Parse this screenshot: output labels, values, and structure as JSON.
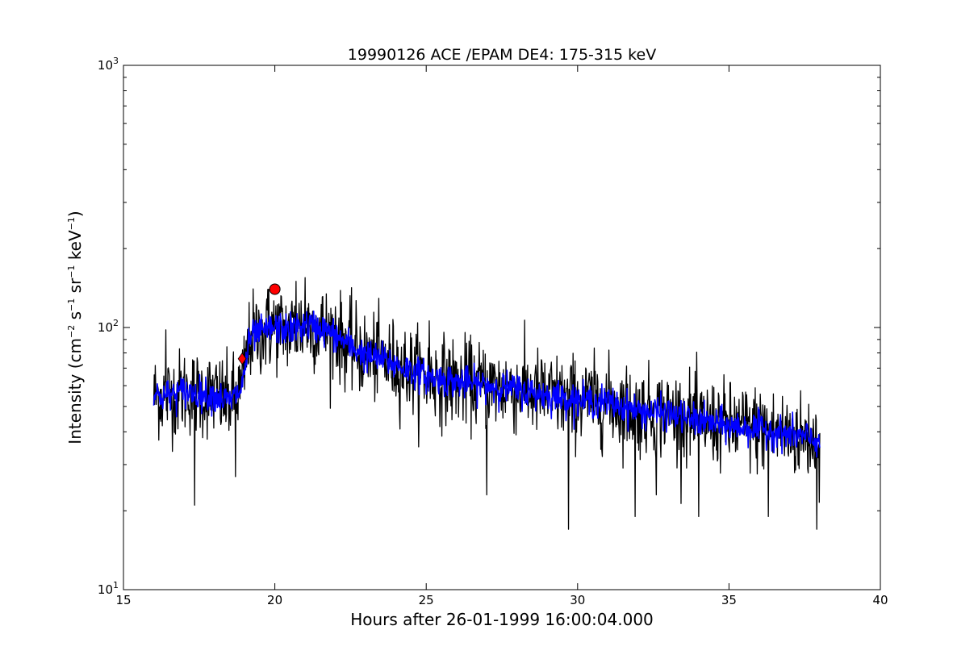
{
  "chart_data": {
    "type": "line",
    "title": "19990126 ACE /EPAM DE4: 175-315 keV",
    "xlabel": "Hours after 26-01-1999 16:00:04.000",
    "ylabel": "Intensity (cm^-2 s^-1 sr^-1 keV^-1)",
    "xlim": [
      15,
      40
    ],
    "ylim": [
      10,
      1000
    ],
    "yscale": "log",
    "grid": false,
    "x_ticks": [
      "15",
      "20",
      "25",
      "30",
      "35",
      "40"
    ],
    "y_ticks": [
      {
        "base": "10",
        "exp": "1",
        "value": 10
      },
      {
        "base": "10",
        "exp": "2",
        "value": 100
      },
      {
        "base": "10",
        "exp": "3",
        "value": 1000
      }
    ],
    "series": [
      {
        "color": "#000000",
        "style": "raw",
        "x": [
          16.0,
          16.5,
          17.0,
          17.5,
          18.0,
          18.5,
          18.9,
          19.2,
          19.5,
          20.0,
          20.5,
          21.0,
          21.5,
          22.0,
          22.5,
          23.0,
          23.5,
          24.0,
          25.0,
          26.0,
          27.0,
          28.0,
          29.0,
          30.0,
          31.0,
          32.0,
          33.0,
          34.0,
          35.0,
          36.0,
          37.0,
          38.0
        ],
        "y": [
          55,
          55,
          57,
          56,
          55,
          52,
          58,
          92,
          95,
          100,
          98,
          102,
          100,
          93,
          85,
          78,
          76,
          72,
          65,
          62,
          60,
          58,
          55,
          53,
          52,
          48,
          47,
          44,
          42,
          41,
          39,
          37
        ],
        "noise": 0.38,
        "dips": [
          {
            "x": 16.4,
            "y": 25
          },
          {
            "x": 17.35,
            "y": 21
          },
          {
            "x": 18.7,
            "y": 27
          },
          {
            "x": 27.0,
            "y": 23
          },
          {
            "x": 29.7,
            "y": 17
          },
          {
            "x": 31.9,
            "y": 19
          },
          {
            "x": 32.6,
            "y": 23
          },
          {
            "x": 34.0,
            "y": 19
          },
          {
            "x": 36.3,
            "y": 19
          },
          {
            "x": 37.9,
            "y": 17
          }
        ],
        "spikes": [
          {
            "x": 16.4,
            "y": 98
          },
          {
            "x": 19.8,
            "y": 140
          },
          {
            "x": 20.7,
            "y": 150
          },
          {
            "x": 21.0,
            "y": 155
          },
          {
            "x": 22.0,
            "y": 120
          },
          {
            "x": 25.1,
            "y": 106
          }
        ]
      },
      {
        "color": "#0000ff",
        "style": "smoothed",
        "x": [
          16.0,
          16.5,
          17.0,
          17.5,
          18.0,
          18.5,
          18.9,
          19.2,
          19.5,
          20.0,
          20.5,
          21.0,
          21.5,
          22.0,
          22.5,
          23.0,
          23.5,
          24.0,
          25.0,
          26.0,
          27.0,
          28.0,
          29.0,
          30.0,
          31.0,
          32.0,
          33.0,
          34.0,
          35.0,
          36.0,
          37.0,
          38.0
        ],
        "y": [
          55,
          55,
          57,
          56,
          55,
          52,
          58,
          92,
          95,
          100,
          98,
          102,
          100,
          93,
          85,
          78,
          76,
          72,
          65,
          62,
          60,
          58,
          55,
          53,
          52,
          48,
          47,
          44,
          42,
          41,
          39,
          37
        ],
        "noise": 0.14
      }
    ],
    "markers": [
      {
        "x": 18.92,
        "y": 76,
        "shape": "diamond",
        "color": "#ff0000"
      },
      {
        "x": 20.0,
        "y": 140,
        "shape": "circle",
        "color": "#ff0000"
      }
    ]
  }
}
